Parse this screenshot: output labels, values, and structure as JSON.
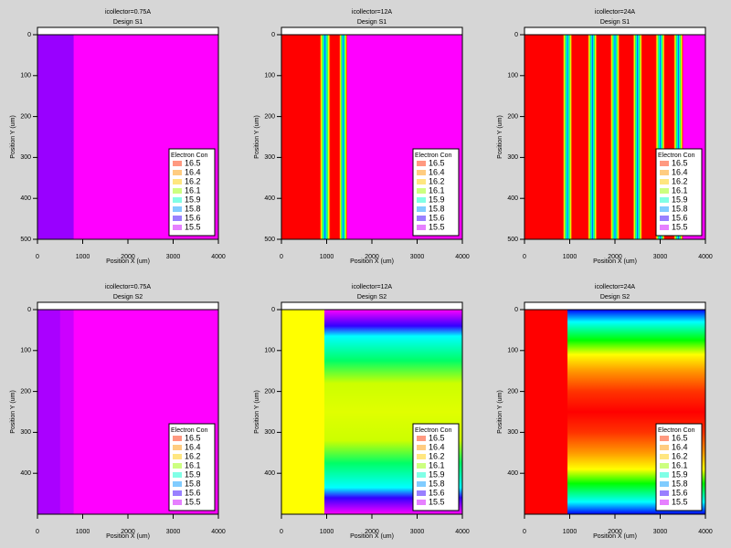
{
  "chart_data": [
    {
      "type": "contour",
      "title": "icollector=0.75A",
      "subtitle": "Design S1",
      "x_label": "Position X (um)",
      "y_label": "Position Y (um)",
      "xlim": [
        0,
        4000
      ],
      "ylim": [
        0,
        500
      ],
      "xticks": [
        0,
        1000,
        2000,
        3000,
        4000
      ],
      "yticks": [
        0,
        100,
        200,
        300,
        400,
        500
      ],
      "legend_title": "Electron Con",
      "levels": [
        16.5,
        16.4,
        16.2,
        16.1,
        15.9,
        15.8,
        15.6,
        15.5
      ]
    },
    {
      "type": "contour",
      "title": "icollector=12A",
      "subtitle": "Design S1",
      "x_label": "Position X (um)",
      "y_label": "Position Y (um)",
      "xlim": [
        0,
        4000
      ],
      "ylim": [
        0,
        500
      ],
      "xticks": [
        0,
        1000,
        2000,
        3000,
        4000
      ],
      "yticks": [
        0,
        100,
        200,
        300,
        400,
        500
      ],
      "legend_title": "Electron Con",
      "levels": [
        16.5,
        16.4,
        16.2,
        16.1,
        15.9,
        15.8,
        15.6,
        15.5
      ]
    },
    {
      "type": "contour",
      "title": "icollector=24A",
      "subtitle": "Design S1",
      "x_label": "Position X (um)",
      "y_label": "Position Y (um)",
      "xlim": [
        0,
        4000
      ],
      "ylim": [
        0,
        500
      ],
      "xticks": [
        0,
        1000,
        2000,
        3000,
        4000
      ],
      "yticks": [
        0,
        100,
        200,
        300,
        400,
        500
      ],
      "legend_title": "Electron Con",
      "levels": [
        16.5,
        16.4,
        16.2,
        16.1,
        15.9,
        15.8,
        15.6,
        15.5
      ]
    },
    {
      "type": "contour",
      "title": "icollector=0.75A",
      "subtitle": "Design S2",
      "x_label": "Position X (um)",
      "y_label": "Position Y (um)",
      "xlim": [
        0,
        4000
      ],
      "ylim": [
        0,
        500
      ],
      "xticks": [
        0,
        1000,
        2000,
        3000,
        4000
      ],
      "yticks": [
        0,
        100,
        200,
        300,
        400
      ],
      "legend_title": "Electron Con",
      "levels": [
        16.5,
        16.4,
        16.2,
        16.1,
        15.9,
        15.8,
        15.6,
        15.5
      ]
    },
    {
      "type": "contour",
      "title": "icollector=12A",
      "subtitle": "Design S2",
      "x_label": "Position X (um)",
      "y_label": "Position Y (um)",
      "xlim": [
        0,
        4000
      ],
      "ylim": [
        0,
        500
      ],
      "xticks": [
        0,
        1000,
        2000,
        3000,
        4000
      ],
      "yticks": [
        0,
        100,
        200,
        300,
        400
      ],
      "legend_title": "Electron Con",
      "levels": [
        16.5,
        16.4,
        16.2,
        16.1,
        15.9,
        15.8,
        15.6,
        15.5
      ]
    },
    {
      "type": "contour",
      "title": "icollector=24A",
      "subtitle": "Design S2",
      "x_label": "Position X (um)",
      "y_label": "Position Y (um)",
      "xlim": [
        0,
        4000
      ],
      "ylim": [
        0,
        500
      ],
      "xticks": [
        0,
        1000,
        2000,
        3000,
        4000
      ],
      "yticks": [
        0,
        100,
        200,
        300,
        400
      ],
      "legend_title": "Electron Con",
      "levels": [
        16.5,
        16.4,
        16.2,
        16.1,
        15.9,
        15.8,
        15.6,
        15.5
      ]
    }
  ]
}
